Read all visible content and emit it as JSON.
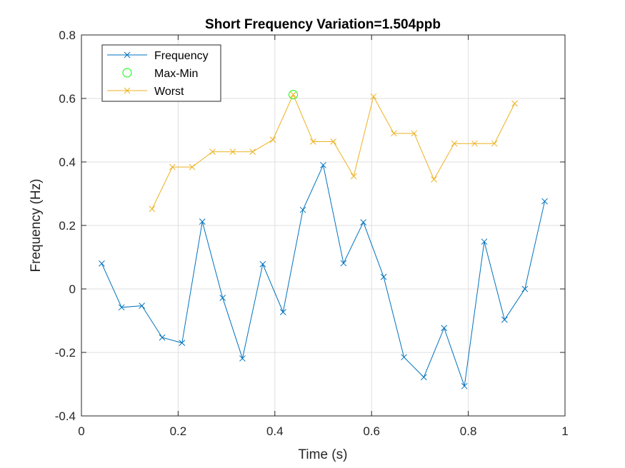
{
  "chart_data": {
    "type": "line",
    "title": "Short Frequency Variation=1.504ppb",
    "xlabel": "Time (s)",
    "ylabel": "Frequency (Hz)",
    "xlim": [
      0,
      1
    ],
    "ylim": [
      -0.4,
      0.8
    ],
    "xticks": [
      0,
      0.2,
      0.4,
      0.6,
      0.8,
      1
    ],
    "xtick_labels": [
      "0",
      "0.2",
      "0.4",
      "0.6",
      "0.8",
      "1"
    ],
    "yticks": [
      -0.4,
      -0.2,
      0,
      0.2,
      0.4,
      0.6,
      0.8
    ],
    "ytick_labels": [
      "-0.4",
      "-0.2",
      "0",
      "0.2",
      "0.4",
      "0.6",
      "0.8"
    ],
    "grid": true,
    "legend_position": "top-left",
    "series": [
      {
        "name": "Frequency",
        "color": "#0072BD",
        "marker": "x",
        "line": true,
        "x": [
          0.042,
          0.083,
          0.125,
          0.167,
          0.208,
          0.25,
          0.292,
          0.333,
          0.375,
          0.417,
          0.458,
          0.5,
          0.542,
          0.583,
          0.625,
          0.667,
          0.708,
          0.75,
          0.792,
          0.833,
          0.875,
          0.917,
          0.958
        ],
        "y": [
          0.08,
          -0.058,
          -0.053,
          -0.153,
          -0.17,
          0.212,
          -0.028,
          -0.219,
          0.078,
          -0.073,
          0.249,
          0.39,
          0.081,
          0.21,
          0.038,
          -0.215,
          -0.278,
          -0.123,
          -0.306,
          0.149,
          -0.097,
          0.0,
          0.276
        ]
      },
      {
        "name": "Max-Min",
        "color": "#00FF00",
        "marker": "o",
        "line": false,
        "x": [
          0.438
        ],
        "y": [
          0.612
        ]
      },
      {
        "name": "Worst",
        "color": "#EDB120",
        "marker": "x",
        "line": true,
        "x": [
          0.146,
          0.188,
          0.229,
          0.271,
          0.313,
          0.354,
          0.396,
          0.438,
          0.479,
          0.521,
          0.563,
          0.604,
          0.646,
          0.688,
          0.729,
          0.771,
          0.813,
          0.854,
          0.896
        ],
        "y": [
          0.252,
          0.384,
          0.384,
          0.432,
          0.432,
          0.432,
          0.47,
          0.612,
          0.464,
          0.464,
          0.355,
          0.606,
          0.49,
          0.49,
          0.345,
          0.458,
          0.458,
          0.458,
          0.584
        ]
      }
    ]
  }
}
